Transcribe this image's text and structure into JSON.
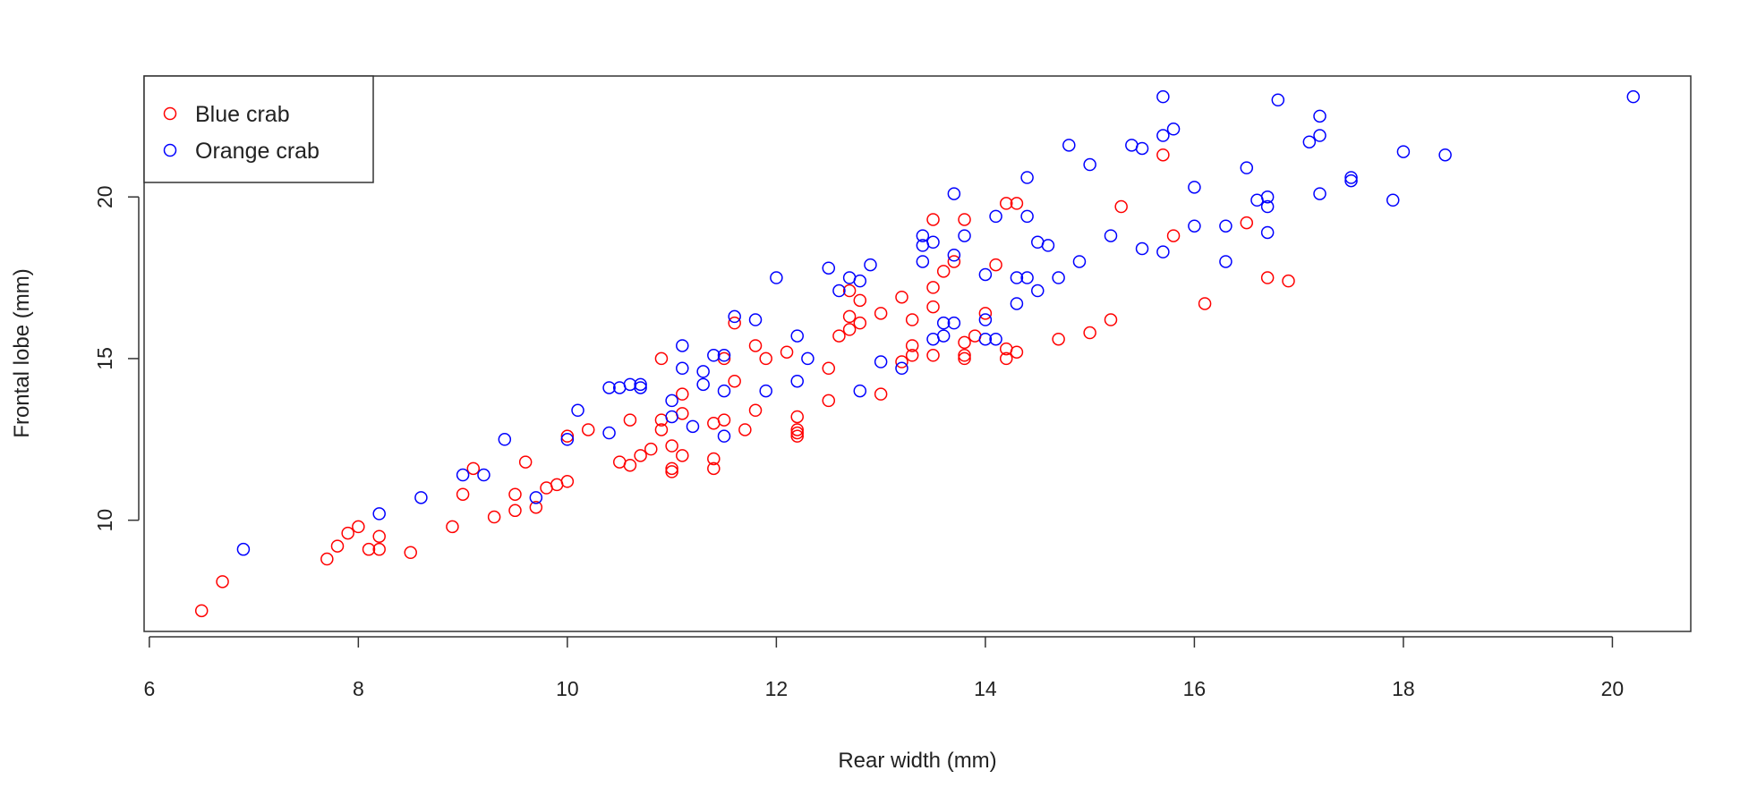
{
  "chart_data": {
    "type": "scatter",
    "title": "",
    "xlabel": "Rear width (mm)",
    "ylabel": "Frontal lobe (mm)",
    "xlim": [
      5.95,
      20.75
    ],
    "ylim": [
      6.56,
      23.74
    ],
    "xticks": [
      6,
      8,
      10,
      12,
      14,
      16,
      18,
      20
    ],
    "yticks": [
      10,
      15,
      20
    ],
    "grid": false,
    "legend_position": "top-left",
    "series": [
      {
        "name": "Blue crab",
        "color": "#ff0000",
        "points": [
          [
            6.5,
            7.2
          ],
          [
            6.7,
            8.1
          ],
          [
            7.7,
            8.8
          ],
          [
            7.8,
            9.2
          ],
          [
            7.9,
            9.6
          ],
          [
            8.0,
            9.8
          ],
          [
            8.1,
            9.1
          ],
          [
            8.2,
            9.5
          ],
          [
            8.2,
            9.1
          ],
          [
            8.5,
            9.0
          ],
          [
            8.9,
            9.8
          ],
          [
            9.0,
            10.8
          ],
          [
            9.1,
            11.6
          ],
          [
            9.3,
            10.1
          ],
          [
            9.5,
            10.8
          ],
          [
            9.5,
            10.3
          ],
          [
            9.6,
            11.8
          ],
          [
            9.7,
            10.4
          ],
          [
            9.8,
            11.0
          ],
          [
            9.9,
            11.1
          ],
          [
            10.0,
            11.2
          ],
          [
            10.0,
            12.6
          ],
          [
            10.2,
            12.8
          ],
          [
            10.5,
            11.8
          ],
          [
            10.6,
            11.7
          ],
          [
            10.6,
            13.1
          ],
          [
            10.7,
            12.0
          ],
          [
            10.8,
            12.2
          ],
          [
            10.9,
            15.0
          ],
          [
            10.9,
            13.1
          ],
          [
            10.9,
            12.8
          ],
          [
            11.0,
            12.3
          ],
          [
            11.0,
            11.6
          ],
          [
            11.0,
            11.5
          ],
          [
            11.1,
            13.9
          ],
          [
            11.1,
            13.3
          ],
          [
            11.1,
            12.0
          ],
          [
            11.4,
            13.0
          ],
          [
            11.4,
            11.9
          ],
          [
            11.4,
            11.6
          ],
          [
            11.5,
            13.1
          ],
          [
            11.5,
            15.0
          ],
          [
            11.6,
            16.1
          ],
          [
            11.6,
            14.3
          ],
          [
            11.7,
            12.8
          ],
          [
            11.8,
            13.4
          ],
          [
            11.8,
            15.4
          ],
          [
            11.9,
            15.0
          ],
          [
            12.1,
            15.2
          ],
          [
            12.2,
            13.2
          ],
          [
            12.2,
            12.8
          ],
          [
            12.2,
            12.7
          ],
          [
            12.2,
            12.6
          ],
          [
            12.5,
            14.7
          ],
          [
            12.5,
            13.7
          ],
          [
            12.6,
            15.7
          ],
          [
            12.7,
            15.9
          ],
          [
            12.7,
            16.3
          ],
          [
            12.7,
            17.1
          ],
          [
            12.8,
            16.8
          ],
          [
            12.8,
            16.1
          ],
          [
            13.0,
            13.9
          ],
          [
            13.0,
            16.4
          ],
          [
            13.2,
            16.9
          ],
          [
            13.2,
            14.9
          ],
          [
            13.3,
            15.1
          ],
          [
            13.3,
            15.4
          ],
          [
            13.3,
            16.2
          ],
          [
            13.5,
            19.3
          ],
          [
            13.5,
            17.2
          ],
          [
            13.5,
            16.6
          ],
          [
            13.5,
            15.1
          ],
          [
            13.6,
            17.7
          ],
          [
            13.7,
            18.0
          ],
          [
            13.8,
            19.3
          ],
          [
            13.8,
            15.5
          ],
          [
            13.8,
            15.1
          ],
          [
            13.8,
            15.0
          ],
          [
            13.9,
            15.7
          ],
          [
            14.0,
            16.4
          ],
          [
            14.1,
            17.9
          ],
          [
            14.2,
            19.8
          ],
          [
            14.2,
            15.3
          ],
          [
            14.2,
            15.0
          ],
          [
            14.3,
            19.8
          ],
          [
            14.3,
            15.2
          ],
          [
            14.7,
            15.6
          ],
          [
            15.0,
            15.8
          ],
          [
            15.2,
            16.2
          ],
          [
            15.3,
            19.7
          ],
          [
            15.7,
            21.3
          ],
          [
            15.8,
            18.8
          ],
          [
            16.1,
            16.7
          ],
          [
            16.5,
            19.2
          ],
          [
            16.7,
            17.5
          ],
          [
            16.9,
            17.4
          ]
        ]
      },
      {
        "name": "Orange crab",
        "color": "#0000ff",
        "points": [
          [
            6.9,
            9.1
          ],
          [
            8.2,
            10.2
          ],
          [
            8.6,
            10.7
          ],
          [
            9.0,
            11.4
          ],
          [
            9.2,
            11.4
          ],
          [
            9.4,
            12.5
          ],
          [
            9.7,
            10.7
          ],
          [
            10.0,
            12.5
          ],
          [
            10.1,
            13.4
          ],
          [
            10.4,
            14.1
          ],
          [
            10.4,
            12.7
          ],
          [
            10.5,
            14.1
          ],
          [
            10.6,
            14.2
          ],
          [
            10.7,
            14.2
          ],
          [
            10.7,
            14.1
          ],
          [
            11.0,
            13.7
          ],
          [
            11.0,
            13.2
          ],
          [
            11.1,
            15.4
          ],
          [
            11.1,
            14.7
          ],
          [
            11.2,
            12.9
          ],
          [
            11.3,
            14.6
          ],
          [
            11.3,
            14.2
          ],
          [
            11.4,
            15.1
          ],
          [
            11.5,
            15.1
          ],
          [
            11.5,
            14.0
          ],
          [
            11.5,
            12.6
          ],
          [
            11.6,
            16.3
          ],
          [
            11.8,
            16.2
          ],
          [
            11.9,
            14.0
          ],
          [
            12.0,
            17.5
          ],
          [
            12.2,
            15.7
          ],
          [
            12.2,
            14.3
          ],
          [
            12.3,
            15.0
          ],
          [
            12.5,
            17.8
          ],
          [
            12.6,
            17.1
          ],
          [
            12.7,
            17.5
          ],
          [
            12.8,
            17.4
          ],
          [
            12.8,
            14.0
          ],
          [
            12.9,
            17.9
          ],
          [
            13.0,
            14.9
          ],
          [
            13.2,
            14.7
          ],
          [
            13.4,
            18.0
          ],
          [
            13.4,
            18.5
          ],
          [
            13.4,
            18.8
          ],
          [
            13.5,
            18.6
          ],
          [
            13.5,
            15.6
          ],
          [
            13.6,
            16.1
          ],
          [
            13.6,
            15.7
          ],
          [
            13.7,
            20.1
          ],
          [
            13.7,
            18.2
          ],
          [
            13.7,
            16.1
          ],
          [
            13.8,
            18.8
          ],
          [
            14.0,
            17.6
          ],
          [
            14.0,
            16.2
          ],
          [
            14.0,
            15.6
          ],
          [
            14.1,
            15.6
          ],
          [
            14.1,
            19.4
          ],
          [
            14.3,
            17.5
          ],
          [
            14.3,
            16.7
          ],
          [
            14.4,
            20.6
          ],
          [
            14.4,
            19.4
          ],
          [
            14.4,
            17.5
          ],
          [
            14.5,
            18.6
          ],
          [
            14.5,
            17.1
          ],
          [
            14.6,
            18.5
          ],
          [
            14.7,
            17.5
          ],
          [
            14.8,
            21.6
          ],
          [
            14.9,
            18.0
          ],
          [
            15.0,
            21.0
          ],
          [
            15.2,
            18.8
          ],
          [
            15.4,
            21.6
          ],
          [
            15.5,
            21.5
          ],
          [
            15.5,
            18.4
          ],
          [
            15.7,
            23.1
          ],
          [
            15.7,
            21.9
          ],
          [
            15.7,
            18.3
          ],
          [
            15.8,
            22.1
          ],
          [
            16.0,
            20.3
          ],
          [
            16.0,
            19.1
          ],
          [
            16.3,
            19.1
          ],
          [
            16.3,
            18.0
          ],
          [
            16.5,
            20.9
          ],
          [
            16.6,
            19.9
          ],
          [
            16.7,
            20.0
          ],
          [
            16.7,
            19.7
          ],
          [
            16.7,
            18.9
          ],
          [
            16.8,
            23.0
          ],
          [
            17.1,
            21.7
          ],
          [
            17.2,
            22.5
          ],
          [
            17.2,
            21.9
          ],
          [
            17.2,
            20.1
          ],
          [
            17.5,
            20.6
          ],
          [
            17.5,
            20.5
          ],
          [
            17.9,
            19.9
          ],
          [
            18.0,
            21.4
          ],
          [
            18.4,
            21.3
          ],
          [
            20.2,
            23.1
          ]
        ]
      }
    ]
  }
}
